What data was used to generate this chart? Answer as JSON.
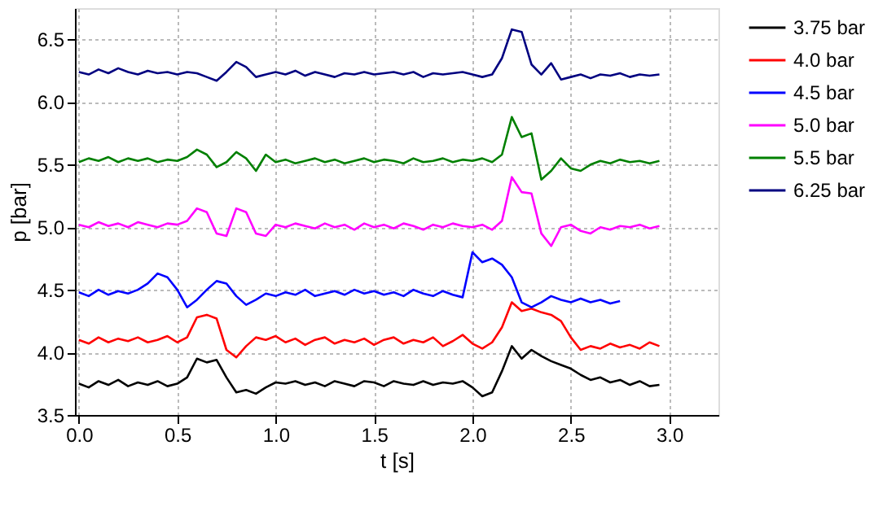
{
  "chart_data": {
    "type": "line",
    "xlabel": "t [s]",
    "ylabel": "p [bar]",
    "x": [
      0,
      0.05,
      0.1,
      0.15,
      0.2,
      0.25,
      0.3,
      0.35,
      0.4,
      0.45,
      0.5,
      0.55,
      0.6,
      0.65,
      0.7,
      0.75,
      0.8,
      0.85,
      0.9,
      0.95,
      1.0,
      1.05,
      1.1,
      1.15,
      1.2,
      1.25,
      1.3,
      1.35,
      1.4,
      1.45,
      1.5,
      1.55,
      1.6,
      1.65,
      1.7,
      1.75,
      1.8,
      1.85,
      1.9,
      1.95,
      2.0,
      2.05,
      2.1,
      2.15,
      2.2,
      2.25,
      2.3,
      2.35,
      2.4,
      2.45,
      2.5,
      2.55,
      2.6,
      2.65,
      2.7,
      2.75,
      2.8,
      2.85,
      2.9,
      2.95
    ],
    "series": [
      {
        "name": "3.75 bar",
        "color": "#000000",
        "values": [
          3.75,
          3.72,
          3.77,
          3.74,
          3.78,
          3.73,
          3.76,
          3.74,
          3.77,
          3.73,
          3.75,
          3.8,
          3.95,
          3.92,
          3.94,
          3.8,
          3.68,
          3.7,
          3.67,
          3.72,
          3.76,
          3.75,
          3.77,
          3.74,
          3.76,
          3.73,
          3.77,
          3.75,
          3.73,
          3.77,
          3.76,
          3.73,
          3.77,
          3.75,
          3.74,
          3.77,
          3.74,
          3.76,
          3.75,
          3.77,
          3.72,
          3.65,
          3.68,
          3.85,
          4.05,
          3.95,
          4.02,
          3.97,
          3.93,
          3.9,
          3.87,
          3.82,
          3.78,
          3.8,
          3.76,
          3.78,
          3.74,
          3.77,
          3.73,
          3.74
        ]
      },
      {
        "name": "4.0 bar",
        "color": "#ff0000",
        "values": [
          4.1,
          4.07,
          4.12,
          4.08,
          4.11,
          4.09,
          4.12,
          4.08,
          4.1,
          4.13,
          4.08,
          4.12,
          4.28,
          4.3,
          4.27,
          4.02,
          3.96,
          4.05,
          4.12,
          4.1,
          4.13,
          4.08,
          4.11,
          4.06,
          4.1,
          4.12,
          4.07,
          4.1,
          4.08,
          4.11,
          4.06,
          4.1,
          4.12,
          4.07,
          4.1,
          4.08,
          4.12,
          4.05,
          4.09,
          4.14,
          4.07,
          4.03,
          4.08,
          4.2,
          4.4,
          4.33,
          4.35,
          4.32,
          4.3,
          4.25,
          4.12,
          4.02,
          4.05,
          4.03,
          4.07,
          4.04,
          4.06,
          4.03,
          4.08,
          4.05
        ]
      },
      {
        "name": "4.5 bar",
        "color": "#0000ff",
        "x": [
          0,
          0.05,
          0.1,
          0.15,
          0.2,
          0.25,
          0.3,
          0.35,
          0.4,
          0.45,
          0.5,
          0.55,
          0.6,
          0.65,
          0.7,
          0.75,
          0.8,
          0.85,
          0.9,
          0.95,
          1.0,
          1.05,
          1.1,
          1.15,
          1.2,
          1.25,
          1.3,
          1.35,
          1.4,
          1.45,
          1.5,
          1.55,
          1.6,
          1.65,
          1.7,
          1.75,
          1.8,
          1.85,
          1.9,
          1.95,
          2.0,
          2.05,
          2.1,
          2.15,
          2.2,
          2.25,
          2.3,
          2.35,
          2.4,
          2.45,
          2.5,
          2.55,
          2.6,
          2.65,
          2.7,
          2.75
        ],
        "values": [
          4.48,
          4.45,
          4.5,
          4.46,
          4.49,
          4.47,
          4.5,
          4.55,
          4.63,
          4.6,
          4.5,
          4.36,
          4.42,
          4.5,
          4.57,
          4.55,
          4.45,
          4.38,
          4.42,
          4.47,
          4.45,
          4.48,
          4.46,
          4.5,
          4.45,
          4.47,
          4.49,
          4.46,
          4.5,
          4.47,
          4.49,
          4.46,
          4.48,
          4.45,
          4.5,
          4.47,
          4.45,
          4.49,
          4.46,
          4.44,
          4.8,
          4.72,
          4.75,
          4.7,
          4.6,
          4.4,
          4.36,
          4.4,
          4.45,
          4.42,
          4.4,
          4.43,
          4.4,
          4.42,
          4.39,
          4.41
        ]
      },
      {
        "name": "5.0 bar",
        "color": "#ff00ff",
        "values": [
          5.02,
          5.0,
          5.04,
          5.01,
          5.03,
          5.0,
          5.04,
          5.02,
          5.0,
          5.03,
          5.02,
          5.05,
          5.15,
          5.12,
          4.95,
          4.93,
          5.15,
          5.12,
          4.95,
          4.93,
          5.02,
          5.0,
          5.03,
          5.01,
          4.99,
          5.03,
          5.0,
          5.02,
          4.98,
          5.03,
          5.0,
          5.02,
          4.99,
          5.03,
          5.01,
          4.98,
          5.02,
          5.0,
          5.03,
          5.01,
          5.0,
          5.02,
          4.98,
          5.05,
          5.4,
          5.28,
          5.27,
          4.95,
          4.85,
          5.0,
          5.02,
          4.97,
          4.95,
          5.0,
          4.98,
          5.01,
          5.0,
          5.02,
          4.99,
          5.01
        ]
      },
      {
        "name": "5.5 bar",
        "color": "#008000",
        "values": [
          5.52,
          5.55,
          5.53,
          5.56,
          5.52,
          5.55,
          5.53,
          5.55,
          5.52,
          5.54,
          5.53,
          5.56,
          5.62,
          5.58,
          5.48,
          5.52,
          5.6,
          5.55,
          5.45,
          5.58,
          5.52,
          5.54,
          5.51,
          5.53,
          5.55,
          5.52,
          5.54,
          5.51,
          5.53,
          5.55,
          5.52,
          5.54,
          5.53,
          5.51,
          5.55,
          5.52,
          5.53,
          5.55,
          5.52,
          5.54,
          5.53,
          5.55,
          5.52,
          5.58,
          5.88,
          5.72,
          5.75,
          5.38,
          5.45,
          5.55,
          5.47,
          5.45,
          5.5,
          5.53,
          5.51,
          5.54,
          5.52,
          5.53,
          5.51,
          5.53
        ]
      },
      {
        "name": "6.25 bar",
        "color": "#000080",
        "values": [
          6.24,
          6.22,
          6.26,
          6.23,
          6.27,
          6.24,
          6.22,
          6.25,
          6.23,
          6.24,
          6.22,
          6.24,
          6.23,
          6.2,
          6.17,
          6.24,
          6.32,
          6.28,
          6.2,
          6.22,
          6.24,
          6.22,
          6.25,
          6.21,
          6.24,
          6.22,
          6.2,
          6.23,
          6.22,
          6.24,
          6.22,
          6.23,
          6.24,
          6.22,
          6.24,
          6.2,
          6.23,
          6.22,
          6.23,
          6.24,
          6.22,
          6.2,
          6.22,
          6.35,
          6.58,
          6.56,
          6.3,
          6.22,
          6.31,
          6.18,
          6.2,
          6.22,
          6.19,
          6.22,
          6.21,
          6.23,
          6.2,
          6.22,
          6.21,
          6.22
        ]
      }
    ],
    "xlim": [
      -0.02,
      3.25
    ],
    "ylim": [
      3.5,
      6.75
    ],
    "xticks": [
      {
        "value": 0,
        "label": "0.0"
      },
      {
        "value": 0.5,
        "label": "0.5"
      },
      {
        "value": 1,
        "label": "1.0"
      },
      {
        "value": 1.5,
        "label": "1.5"
      },
      {
        "value": 2,
        "label": "2.0"
      },
      {
        "value": 2.5,
        "label": "2.5"
      },
      {
        "value": 3,
        "label": "3.0"
      }
    ],
    "yticks": [
      {
        "value": 3.5,
        "label": "3.5"
      },
      {
        "value": 4,
        "label": "4.0"
      },
      {
        "value": 4.5,
        "label": "4.5"
      },
      {
        "value": 5,
        "label": "5.0"
      },
      {
        "value": 5.5,
        "label": "5.5"
      },
      {
        "value": 6,
        "label": "6.0"
      },
      {
        "value": 6.5,
        "label": "6.5"
      }
    ],
    "grid": true,
    "legend": "right",
    "marker": "none",
    "line_style": "solid"
  }
}
